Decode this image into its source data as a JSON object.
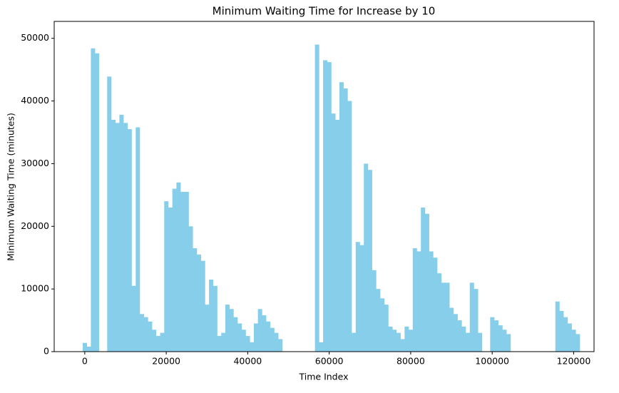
{
  "chart_data": {
    "type": "bar",
    "title": "Minimum Waiting Time for Increase by 10",
    "x_label": "Time Index",
    "y_label": "Minimum Waiting Time (minutes)",
    "color": "#87ceeb",
    "x": [
      0,
      1000,
      2000,
      3000,
      6000,
      7000,
      8000,
      9000,
      10000,
      11000,
      12000,
      13000,
      14000,
      15000,
      16000,
      17000,
      18000,
      19000,
      20000,
      21000,
      22000,
      23000,
      24000,
      25000,
      26000,
      27000,
      28000,
      29000,
      30000,
      31000,
      32000,
      33000,
      34000,
      35000,
      36000,
      37000,
      38000,
      39000,
      40000,
      41000,
      42000,
      43000,
      44000,
      45000,
      46000,
      47000,
      48000,
      57000,
      58000,
      59000,
      60000,
      61000,
      62000,
      63000,
      64000,
      65000,
      66000,
      67000,
      68000,
      69000,
      70000,
      71000,
      72000,
      73000,
      74000,
      75000,
      76000,
      77000,
      78000,
      79000,
      80000,
      81000,
      82000,
      83000,
      84000,
      85000,
      86000,
      87000,
      88000,
      89000,
      90000,
      91000,
      92000,
      93000,
      94000,
      95000,
      96000,
      97000,
      100000,
      101000,
      102000,
      103000,
      104000,
      116000,
      117000,
      118000,
      119000,
      120000,
      121000
    ],
    "values": [
      1400,
      800,
      48400,
      47600,
      43900,
      37000,
      36500,
      37800,
      36500,
      35500,
      10500,
      35800,
      6000,
      5500,
      4800,
      3500,
      2500,
      3000,
      24000,
      23000,
      26000,
      27000,
      25500,
      25500,
      20000,
      16500,
      15500,
      14500,
      7500,
      11500,
      10500,
      2500,
      3000,
      7500,
      6800,
      5500,
      4500,
      3500,
      2500,
      1500,
      4500,
      6800,
      5800,
      4800,
      3800,
      3000,
      2000,
      49000,
      1500,
      46500,
      46200,
      38000,
      37000,
      43000,
      42000,
      40000,
      3000,
      17500,
      17000,
      30000,
      29000,
      13000,
      10000,
      8500,
      7500,
      4000,
      3500,
      3000,
      2000,
      4000,
      3500,
      16500,
      16000,
      23000,
      22000,
      16000,
      15000,
      12500,
      11000,
      11000,
      7000,
      6000,
      5000,
      4000,
      3000,
      11000,
      10000,
      3000,
      5500,
      5000,
      4200,
      3500,
      2800,
      8000,
      6500,
      5500,
      4500,
      3500,
      2800
    ],
    "xlim": [
      -7500,
      125000
    ],
    "ylim": [
      0,
      52700
    ],
    "xticks": [
      0,
      20000,
      40000,
      60000,
      80000,
      100000,
      120000
    ],
    "yticks": [
      0,
      10000,
      20000,
      30000,
      40000,
      50000
    ]
  }
}
